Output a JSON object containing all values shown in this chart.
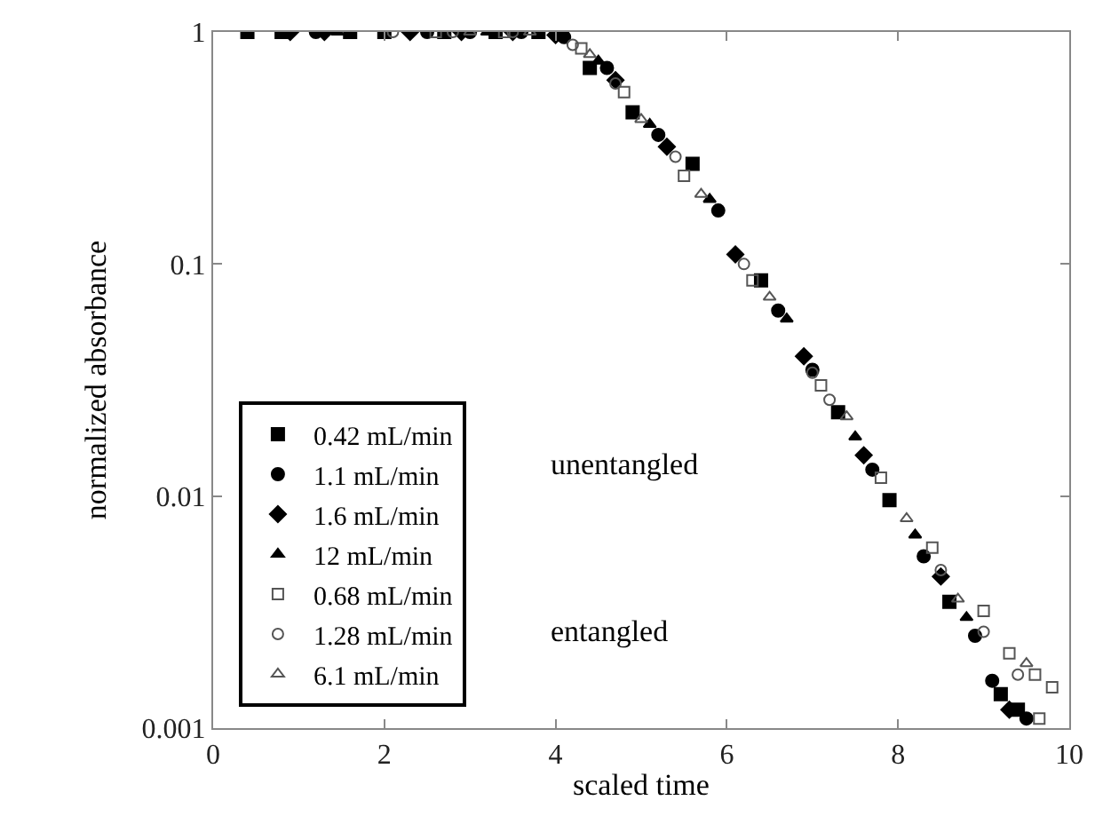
{
  "chart_data": {
    "type": "scatter",
    "xlabel": "scaled time",
    "ylabel": "normalized absorbance",
    "log": "y",
    "xlim": [
      0,
      10
    ],
    "xticks": [
      0,
      2,
      4,
      6,
      8,
      10
    ],
    "ylim": [
      0.001,
      1
    ],
    "yticks": [
      {
        "value": 1,
        "label": "1"
      },
      {
        "value": 0.1,
        "label": "0.1"
      },
      {
        "value": 0.01,
        "label": "0.01"
      },
      {
        "value": 0.001,
        "label": "0.001"
      }
    ],
    "legend": "bottom left",
    "annotations": [
      "unentangled",
      "entangled"
    ],
    "series": [
      {
        "name": "0.42 mL/min",
        "color": "#000000",
        "marker": "square",
        "x": [
          0.4,
          0.8,
          1.6,
          2.0,
          2.7,
          3.3,
          3.8,
          4.4,
          4.9,
          5.6,
          6.4,
          7.3,
          7.9,
          8.6,
          9.2,
          9.4
        ],
        "values": [
          1,
          1,
          1,
          1,
          1,
          1,
          1,
          0.7,
          0.45,
          0.27,
          0.085,
          0.023,
          0.0096,
          0.0035,
          0.0014,
          0.0012
        ]
      },
      {
        "name": "1.1 mL/min",
        "color": "#000000",
        "marker": "circle",
        "x": [
          1.2,
          2.5,
          3.0,
          3.6,
          4.1,
          4.6,
          5.2,
          5.9,
          6.6,
          7.0,
          7.7,
          8.3,
          8.9,
          9.1,
          9.5
        ],
        "values": [
          1,
          1,
          1,
          1,
          0.95,
          0.7,
          0.36,
          0.17,
          0.063,
          0.035,
          0.013,
          0.0055,
          0.0025,
          0.0016,
          0.0011
        ]
      },
      {
        "name": "1.6 mL/min",
        "color": "#000000",
        "marker": "diamond",
        "x": [
          0.9,
          1.3,
          2.3,
          2.9,
          3.5,
          4.0,
          4.7,
          5.3,
          6.1,
          6.9,
          7.6,
          8.5,
          9.3
        ],
        "values": [
          1,
          1,
          1,
          1,
          1,
          0.97,
          0.62,
          0.32,
          0.11,
          0.04,
          0.015,
          0.0045,
          0.0012
        ]
      },
      {
        "name": "12 mL/min",
        "color": "#000000",
        "marker": "triangle",
        "x": [
          3.2,
          1.45,
          4.5,
          5.1,
          5.8,
          6.7,
          7.5,
          8.2,
          8.8
        ],
        "values": [
          1,
          1,
          0.75,
          0.4,
          0.19,
          0.058,
          0.018,
          0.0068,
          0.003
        ]
      },
      {
        "name": "0.68 mL/min",
        "color": "#555555",
        "marker": "square-open",
        "x": [
          2.6,
          3.4,
          4.3,
          4.8,
          5.5,
          6.3,
          7.1,
          7.8,
          8.4,
          9.0,
          9.3,
          9.6,
          9.8,
          9.65
        ],
        "values": [
          1,
          1,
          0.85,
          0.55,
          0.24,
          0.085,
          0.03,
          0.012,
          0.006,
          0.0032,
          0.0021,
          0.0017,
          0.0015,
          0.0011
        ]
      },
      {
        "name": "1.28 mL/min",
        "color": "#555555",
        "marker": "circle-open",
        "x": [
          2.1,
          2.8,
          3.5,
          4.2,
          4.7,
          5.4,
          6.2,
          7.0,
          7.2,
          8.5,
          9.0,
          9.4
        ],
        "values": [
          1,
          1,
          1,
          0.88,
          0.6,
          0.29,
          0.1,
          0.034,
          0.026,
          0.0048,
          0.0026,
          0.0017
        ]
      },
      {
        "name": "6.1 mL/min",
        "color": "#555555",
        "marker": "triangle-open",
        "x": [
          3.0,
          3.7,
          4.4,
          5.0,
          5.7,
          6.5,
          7.4,
          8.1,
          8.7,
          9.5
        ],
        "values": [
          1,
          1,
          0.8,
          0.42,
          0.2,
          0.072,
          0.022,
          0.008,
          0.0036,
          0.0019
        ]
      }
    ]
  }
}
